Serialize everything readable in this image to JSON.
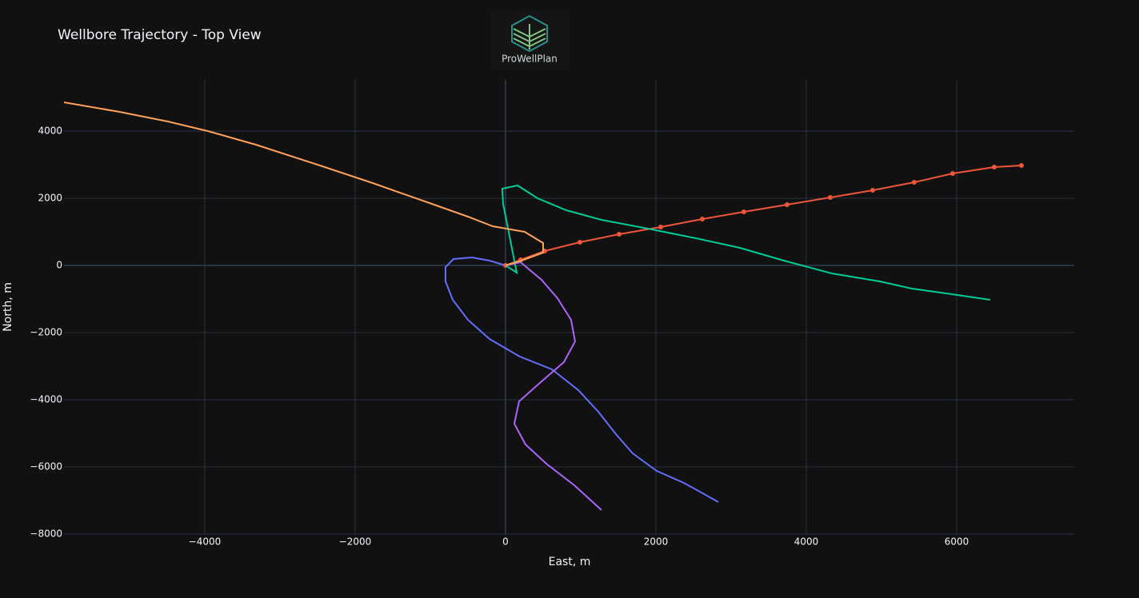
{
  "chart_data": {
    "type": "line",
    "title": "Wellbore Trajectory - Top View",
    "logo_text": "ProWellPlan",
    "xlabel": "East, m",
    "ylabel": "North, m",
    "xlim": [
      -5872,
      7564
    ],
    "ylim": [
      -8000,
      5524
    ],
    "xticks": [
      {
        "value": -4000,
        "label": "−4000"
      },
      {
        "value": -2000,
        "label": "−2000"
      },
      0,
      2000,
      4000,
      6000
    ],
    "yticks": [
      {
        "value": -8000,
        "label": "−8000"
      },
      {
        "value": -6000,
        "label": "−6000"
      },
      {
        "value": -4000,
        "label": "−4000"
      },
      {
        "value": -2000,
        "label": "−2000"
      },
      0,
      2000,
      4000
    ],
    "grid": true,
    "series": [
      {
        "color": "#636efa",
        "markers": false,
        "x": [
          0,
          -213,
          -447,
          -691,
          -798,
          -798,
          -702,
          -500,
          -213,
          191,
          617,
          968,
          1234,
          1468,
          1691,
          2011,
          2372,
          2585,
          2830
        ],
        "values": [
          0,
          143,
          238,
          190,
          -48,
          -476,
          -1024,
          -1619,
          -2190,
          -2714,
          -3095,
          -3714,
          -4357,
          -5024,
          -5595,
          -6119,
          -6476,
          -6738,
          -7048
        ]
      },
      {
        "color": "#EF553B",
        "markers": true,
        "x": [
          0,
          202,
          521,
          989,
          1511,
          2064,
          2617,
          3170,
          3745,
          4319,
          4883,
          5436,
          5947,
          6500,
          6862
        ],
        "values": [
          0,
          167,
          429,
          690,
          929,
          1143,
          1381,
          1595,
          1810,
          2024,
          2238,
          2476,
          2738,
          2929,
          2976
        ]
      },
      {
        "color": "#00cc96",
        "markers": false,
        "x": [
          0,
          149,
          -32,
          -43,
          160,
          426,
          809,
          1277,
          1894,
          2532,
          3117,
          3702,
          4340,
          4979,
          5404,
          5936,
          6447
        ],
        "values": [
          0,
          -214,
          1833,
          2286,
          2381,
          2000,
          1643,
          1357,
          1095,
          810,
          524,
          143,
          -238,
          -476,
          -690,
          -857,
          -1024
        ]
      },
      {
        "color": "#ab63fa",
        "markers": false,
        "x": [
          0,
          200,
          479,
          691,
          872,
          926,
          777,
          468,
          181,
          117,
          266,
          543,
          915,
          1277
        ],
        "values": [
          0,
          95,
          -429,
          -976,
          -1619,
          -2262,
          -2881,
          -3476,
          -4048,
          -4714,
          -5333,
          -5905,
          -6548,
          -7286
        ]
      },
      {
        "color": "#FFA15A",
        "markers": false,
        "x": [
          -5872,
          -5128,
          -4489,
          -3957,
          -3319,
          -2468,
          -1766,
          -979,
          -500,
          -170,
          255,
          500,
          500,
          213,
          0
        ],
        "values": [
          4857,
          4571,
          4286,
          4000,
          3595,
          2976,
          2452,
          1833,
          1452,
          1167,
          1000,
          667,
          381,
          143,
          0
        ]
      }
    ]
  }
}
